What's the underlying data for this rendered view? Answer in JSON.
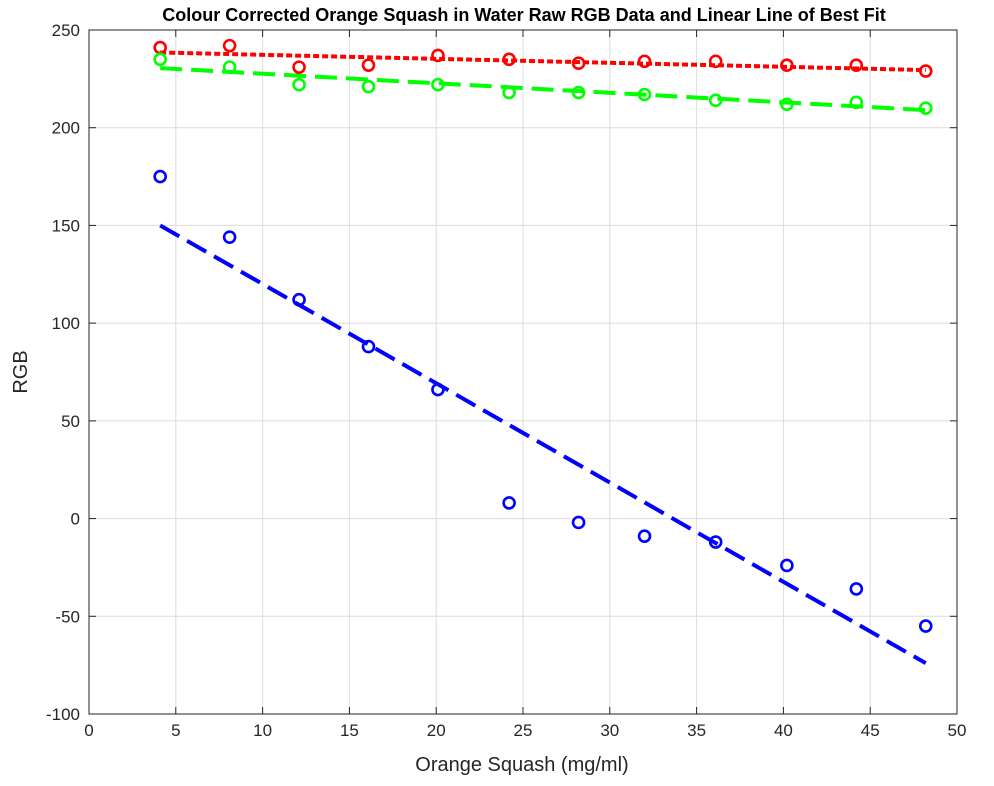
{
  "chart_data": {
    "type": "scatter",
    "title": "Colour Corrected Orange Squash in Water Raw RGB Data and Linear Line of Best Fit",
    "xlabel": "Orange Squash (mg/ml)",
    "ylabel": "RGB",
    "xlim": [
      0,
      50
    ],
    "ylim": [
      -100,
      250
    ],
    "xticks": [
      0,
      5,
      10,
      15,
      20,
      25,
      30,
      35,
      40,
      45,
      50
    ],
    "yticks": [
      -100,
      -50,
      0,
      50,
      100,
      150,
      200,
      250
    ],
    "xtick_labels": [
      "0",
      "5",
      "10",
      "15",
      "20",
      "25",
      "30",
      "35",
      "40",
      "45",
      "50"
    ],
    "ytick_labels": [
      "-100",
      "-50",
      "0",
      "50",
      "100",
      "150",
      "200",
      "250"
    ],
    "grid": true,
    "x": [
      4.1,
      8.1,
      12.1,
      16.1,
      20.1,
      24.2,
      28.2,
      32.0,
      36.1,
      40.2,
      44.2,
      48.2
    ],
    "series": [
      {
        "color": "#ff0000",
        "marker": "circle",
        "values": [
          241,
          242,
          231,
          232,
          237,
          235,
          233,
          234,
          234,
          232,
          232,
          229
        ],
        "fit_line": {
          "x": [
            4.1,
            48.2
          ],
          "y": [
            238.5,
            229.5
          ],
          "dash": "short"
        }
      },
      {
        "color": "#00ff00",
        "marker": "circle",
        "values": [
          235,
          231,
          222,
          221,
          222,
          218,
          218,
          217,
          214,
          212,
          213,
          210
        ],
        "fit_line": {
          "x": [
            4.1,
            48.2
          ],
          "y": [
            230.5,
            209
          ],
          "dash": "long"
        }
      },
      {
        "color": "#0000ff",
        "marker": "circle",
        "values": [
          175,
          144,
          112,
          88,
          66,
          8,
          -2,
          -9,
          -12,
          -24,
          -36,
          -55
        ],
        "fit_line": {
          "x": [
            4.1,
            48.2
          ],
          "y": [
            150,
            -74
          ],
          "dash": "long"
        }
      }
    ]
  }
}
